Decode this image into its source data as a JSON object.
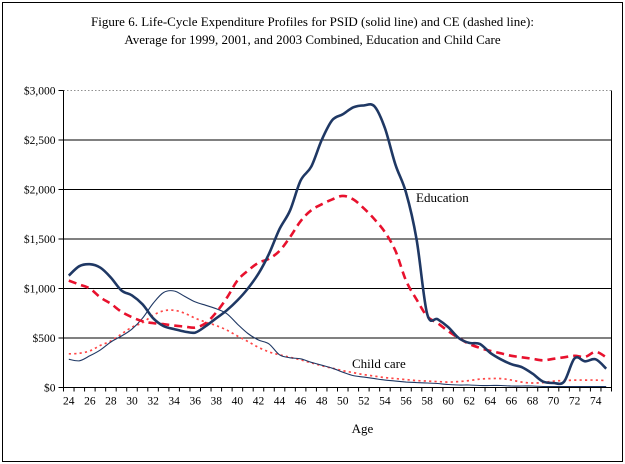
{
  "figure": {
    "title_line1": "Figure 6. Life-Cycle Expenditure Profiles for PSID (solid line) and CE (dashed line):",
    "title_line2": "Average for 1999, 2001, and 2003 Combined, Education and Child Care",
    "background_color": "#FFFFFF",
    "border_color": "#000000"
  },
  "chart_data": {
    "type": "line",
    "title": "Figure 6. Life-Cycle Expenditure Profiles for PSID (solid line) and CE (dashed line): Average for 1999, 2001, and 2003 Combined, Education and Child Care",
    "xlabel": "Age",
    "ylabel": "",
    "xlim": [
      23.5,
      75.5
    ],
    "ylim": [
      0,
      3000
    ],
    "grid": "horizontal",
    "legend_position": "inline-annotations",
    "colors": {
      "psid_navy": "#1F3864",
      "ce_red": "#E8112D",
      "ce_red_dotted": "#FF4747",
      "grid_line": "#000000",
      "top_grid_dotted": "#909090"
    },
    "y_ticks": [
      0,
      500,
      1000,
      1500,
      2000,
      2500,
      3000
    ],
    "y_tick_labels": [
      "$0",
      "$500",
      "$1,000",
      "$1,500",
      "$2,000",
      "$2,500",
      "$3,000"
    ],
    "x_label_ages": [
      24,
      26,
      28,
      30,
      32,
      34,
      36,
      38,
      40,
      42,
      44,
      46,
      48,
      50,
      52,
      54,
      56,
      58,
      60,
      62,
      64,
      66,
      68,
      70,
      72,
      74
    ],
    "x_tick_labels": [
      "24",
      "26",
      "28",
      "30",
      "32",
      "34",
      "36",
      "38",
      "40",
      "42",
      "44",
      "46",
      "48",
      "50",
      "52",
      "54",
      "56",
      "58",
      "60",
      "62",
      "64",
      "66",
      "68",
      "70",
      "72",
      "74"
    ],
    "annotations": {
      "education_label": "Education",
      "childcare_label": "Child care",
      "x_axis_title": "Age"
    },
    "x": [
      24,
      25,
      26,
      27,
      28,
      29,
      30,
      31,
      32,
      33,
      34,
      35,
      36,
      37,
      38,
      39,
      40,
      41,
      42,
      43,
      44,
      45,
      46,
      47,
      48,
      49,
      50,
      51,
      52,
      53,
      54,
      55,
      56,
      57,
      58,
      59,
      60,
      61,
      62,
      63,
      64,
      65,
      66,
      67,
      68,
      69,
      70,
      71,
      72,
      73,
      74,
      75
    ],
    "series": [
      {
        "name": "Child care CE (dotted red)",
        "key": "childcare-ce",
        "style": "dotted-thin",
        "color": "#FF4747",
        "values": [
          340,
          345,
          370,
          425,
          470,
          540,
          610,
          655,
          730,
          775,
          780,
          750,
          700,
          660,
          625,
          580,
          520,
          465,
          405,
          360,
          330,
          305,
          280,
          250,
          220,
          195,
          170,
          150,
          130,
          115,
          100,
          90,
          80,
          70,
          65,
          60,
          55,
          60,
          70,
          85,
          90,
          90,
          75,
          55,
          45,
          50,
          65,
          70,
          75,
          75,
          75,
          70
        ]
      },
      {
        "name": "Child care PSID (solid thin navy)",
        "key": "childcare-psid",
        "style": "solid-thin",
        "color": "#1F3864",
        "values": [
          285,
          270,
          320,
          380,
          460,
          520,
          590,
          700,
          850,
          960,
          975,
          920,
          865,
          830,
          795,
          745,
          640,
          545,
          480,
          440,
          330,
          300,
          290,
          255,
          225,
          195,
          155,
          120,
          105,
          90,
          75,
          65,
          55,
          50,
          45,
          40,
          30,
          25,
          25,
          20,
          20,
          20,
          15,
          15,
          15,
          10,
          10,
          10,
          10,
          10,
          10,
          10
        ]
      },
      {
        "name": "Education CE (dashed red)",
        "key": "education-ce",
        "style": "dashed-thick",
        "color": "#E8112D",
        "values": [
          1080,
          1040,
          1000,
          910,
          845,
          765,
          710,
          670,
          650,
          640,
          625,
          615,
          605,
          650,
          760,
          905,
          1080,
          1180,
          1260,
          1300,
          1380,
          1520,
          1680,
          1790,
          1850,
          1900,
          1935,
          1900,
          1810,
          1700,
          1570,
          1380,
          1080,
          890,
          720,
          650,
          570,
          500,
          440,
          400,
          370,
          345,
          320,
          305,
          290,
          275,
          290,
          305,
          320,
          310,
          360,
          305
        ]
      },
      {
        "name": "Education PSID (solid thick navy)",
        "key": "education-psid",
        "style": "solid-thick",
        "color": "#1F3864",
        "values": [
          1130,
          1225,
          1245,
          1210,
          1110,
          980,
          930,
          840,
          700,
          620,
          590,
          565,
          555,
          620,
          700,
          780,
          880,
          1000,
          1150,
          1350,
          1600,
          1790,
          2090,
          2230,
          2500,
          2700,
          2760,
          2830,
          2850,
          2840,
          2620,
          2250,
          1970,
          1500,
          745,
          690,
          610,
          500,
          450,
          440,
          350,
          285,
          235,
          205,
          140,
          60,
          45,
          60,
          295,
          265,
          285,
          190
        ]
      }
    ]
  }
}
